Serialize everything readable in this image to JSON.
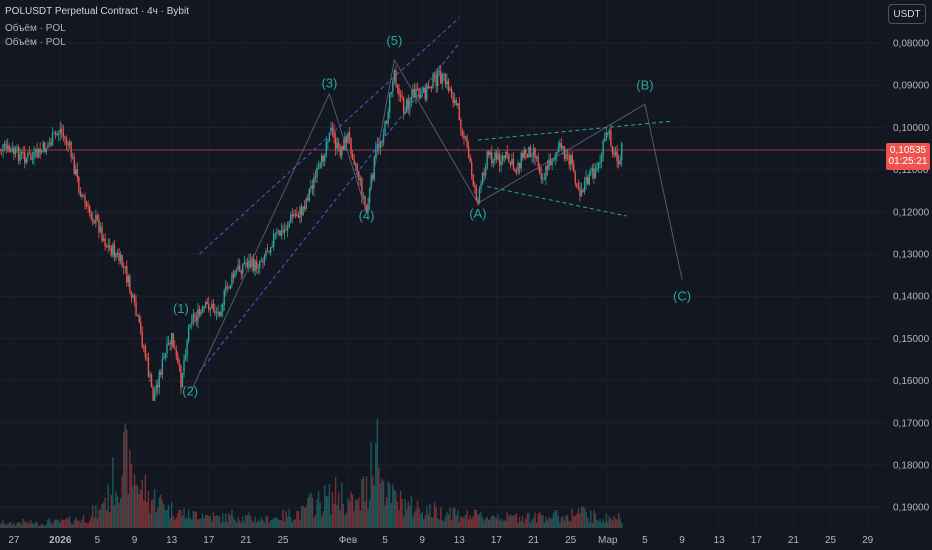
{
  "header": {
    "title": "POLUSDT Perpetual Contract · 4ч · Bybit",
    "volume_label_1": "Объём · POL",
    "volume_label_2": "Объём · POL",
    "currency_button": "USDT"
  },
  "price_badge": {
    "price": "0,10535",
    "countdown": "01:25:21"
  },
  "colors": {
    "up": "#26a69a",
    "down": "#ef5350",
    "wave": "#26a69a",
    "channel": "#4a5bd4",
    "background": "#131722",
    "axis_text": "#b2b5be",
    "price_line": "#ef5350"
  },
  "chart_data": {
    "type": "candlestick",
    "y_axis": {
      "inverted": true,
      "ticks": [
        "0,08000",
        "0,09000",
        "0,10000",
        "0,11000",
        "0,12000",
        "0,13000",
        "0,14000",
        "0,15000",
        "0,16000",
        "0,17000",
        "0,18000",
        "0,19000"
      ]
    },
    "x_axis": {
      "ticks": [
        "27",
        "2026",
        "5",
        "9",
        "13",
        "17",
        "21",
        "25",
        "Фев",
        "5",
        "9",
        "13",
        "17",
        "21",
        "25",
        "Мар",
        "5",
        "9",
        "13",
        "17",
        "21",
        "25",
        "29"
      ]
    },
    "last_price": 0.10535,
    "price_path": [
      {
        "x": "Dec 25",
        "y": 0.1045
      },
      {
        "x": "Dec 27",
        "y": 0.106
      },
      {
        "x": "Dec 29",
        "y": 0.1075
      },
      {
        "x": "Dec 31",
        "y": 0.1035
      },
      {
        "x": "Jan 1",
        "y": 0.1005
      },
      {
        "x": "Jan 2",
        "y": 0.105
      },
      {
        "x": "Jan 3",
        "y": 0.114
      },
      {
        "x": "Jan 4",
        "y": 0.12
      },
      {
        "x": "Jan 5",
        "y": 0.1225
      },
      {
        "x": "Jan 6",
        "y": 0.128
      },
      {
        "x": "Jan 7",
        "y": 0.13
      },
      {
        "x": "Jan 8",
        "y": 0.134
      },
      {
        "x": "Jan 9",
        "y": 0.143
      },
      {
        "x": "Jan 10",
        "y": 0.152
      },
      {
        "x": "Jan 11",
        "y": 0.164
      },
      {
        "x": "Jan 12",
        "y": 0.156
      },
      {
        "x": "Jan 13",
        "y": 0.15
      },
      {
        "x": "Jan 14",
        "y": 0.16
      },
      {
        "x": "Jan 15",
        "y": 0.145
      },
      {
        "x": "Jan 16",
        "y": 0.1445
      },
      {
        "x": "Jan 17",
        "y": 0.142
      },
      {
        "x": "Jan 18",
        "y": 0.144
      },
      {
        "x": "Jan 19",
        "y": 0.138
      },
      {
        "x": "Jan 20",
        "y": 0.134
      },
      {
        "x": "Jan 21",
        "y": 0.132
      },
      {
        "x": "Jan 22",
        "y": 0.133
      },
      {
        "x": "Jan 23",
        "y": 0.13
      },
      {
        "x": "Jan 24",
        "y": 0.126
      },
      {
        "x": "Jan 25",
        "y": 0.125
      },
      {
        "x": "Jan 26",
        "y": 0.121
      },
      {
        "x": "Jan 27",
        "y": 0.12
      },
      {
        "x": "Jan 28",
        "y": 0.114
      },
      {
        "x": "Jan 29",
        "y": 0.11
      },
      {
        "x": "Jan 30",
        "y": 0.1
      },
      {
        "x": "Jan 31",
        "y": 0.106
      },
      {
        "x": "Feb 1",
        "y": 0.102
      },
      {
        "x": "Feb 2",
        "y": 0.11
      },
      {
        "x": "Feb 3",
        "y": 0.12
      },
      {
        "x": "Feb 4",
        "y": 0.106
      },
      {
        "x": "Feb 5",
        "y": 0.1
      },
      {
        "x": "Feb 6",
        "y": 0.0865
      },
      {
        "x": "Feb 7",
        "y": 0.096
      },
      {
        "x": "Feb 8",
        "y": 0.092
      },
      {
        "x": "Feb 9",
        "y": 0.093
      },
      {
        "x": "Feb 10",
        "y": 0.089
      },
      {
        "x": "Feb 11",
        "y": 0.088
      },
      {
        "x": "Feb 12",
        "y": 0.091
      },
      {
        "x": "Feb 13",
        "y": 0.097
      },
      {
        "x": "Feb 14",
        "y": 0.107
      },
      {
        "x": "Feb 15",
        "y": 0.118
      },
      {
        "x": "Feb 16",
        "y": 0.106
      },
      {
        "x": "Feb 17",
        "y": 0.1075
      },
      {
        "x": "Feb 18",
        "y": 0.107
      },
      {
        "x": "Feb 19",
        "y": 0.11
      },
      {
        "x": "Feb 20",
        "y": 0.106
      },
      {
        "x": "Feb 21",
        "y": 0.105
      },
      {
        "x": "Feb 22",
        "y": 0.112
      },
      {
        "x": "Feb 23",
        "y": 0.107
      },
      {
        "x": "Feb 24",
        "y": 0.105
      },
      {
        "x": "Feb 25",
        "y": 0.108
      },
      {
        "x": "Feb 26",
        "y": 0.115
      },
      {
        "x": "Feb 27",
        "y": 0.112
      },
      {
        "x": "Feb 28",
        "y": 0.109
      },
      {
        "x": "Mar 1",
        "y": 0.101
      },
      {
        "x": "Mar 2",
        "y": 0.108
      },
      {
        "x": "Mar 2.5",
        "y": 0.10535
      }
    ],
    "volume_profile": [
      0.05,
      0.06,
      0.05,
      0.07,
      0.06,
      0.05,
      0.08,
      0.07,
      0.09,
      0.1,
      0.12,
      0.18,
      0.35,
      0.55,
      0.8,
      0.62,
      0.45,
      0.35,
      0.3,
      0.22,
      0.18,
      0.15,
      0.18,
      0.14,
      0.12,
      0.13,
      0.15,
      0.12,
      0.11,
      0.1,
      0.12,
      0.14,
      0.16,
      0.18,
      0.28,
      0.3,
      0.35,
      0.4,
      0.3,
      0.28,
      0.45,
      1.0,
      0.55,
      0.35,
      0.3,
      0.25,
      0.22,
      0.2,
      0.18,
      0.2,
      0.16,
      0.15,
      0.14,
      0.13,
      0.15,
      0.12,
      0.13,
      0.14,
      0.12,
      0.15,
      0.14,
      0.13,
      0.16,
      0.18,
      0.14,
      0.12
    ],
    "wave_labels": [
      {
        "label": "(1)",
        "x": "Jan 14",
        "y": 0.144
      },
      {
        "label": "(2)",
        "x": "Jan 15",
        "y": 0.1635
      },
      {
        "label": "(3)",
        "x": "Jan 30",
        "y": 0.0905
      },
      {
        "label": "(4)",
        "x": "Feb 3",
        "y": 0.122
      },
      {
        "label": "(5)",
        "x": "Feb 6",
        "y": 0.0805
      },
      {
        "label": "(A)",
        "x": "Feb 15",
        "y": 0.1215
      },
      {
        "label": "(B)",
        "x": "Mar 5",
        "y": 0.091
      },
      {
        "label": "(C)",
        "x": "Mar 9",
        "y": 0.141
      }
    ],
    "wave_path": [
      {
        "x": "Jan 15",
        "y": 0.163
      },
      {
        "x": "Jan 30",
        "y": 0.092
      },
      {
        "x": "Feb 3",
        "y": 0.12
      },
      {
        "x": "Feb 6",
        "y": 0.084
      },
      {
        "x": "Feb 15",
        "y": 0.118
      },
      {
        "x": "Mar 5",
        "y": 0.0945
      },
      {
        "x": "Mar 9",
        "y": 0.136
      }
    ],
    "channel_lines": [
      {
        "from": {
          "x": "Jan 16",
          "y": 0.13
        },
        "to": {
          "x": "Feb 13",
          "y": 0.074
        }
      },
      {
        "from": {
          "x": "Jan 16",
          "y": 0.158
        },
        "to": {
          "x": "Feb 13",
          "y": 0.08
        }
      },
      {
        "from": {
          "x": "Feb 15",
          "y": 0.103
        },
        "to": {
          "x": "Mar 8",
          "y": 0.0985
        }
      },
      {
        "from": {
          "x": "Feb 16",
          "y": 0.114
        },
        "to": {
          "x": "Mar 3",
          "y": 0.121
        }
      }
    ]
  }
}
